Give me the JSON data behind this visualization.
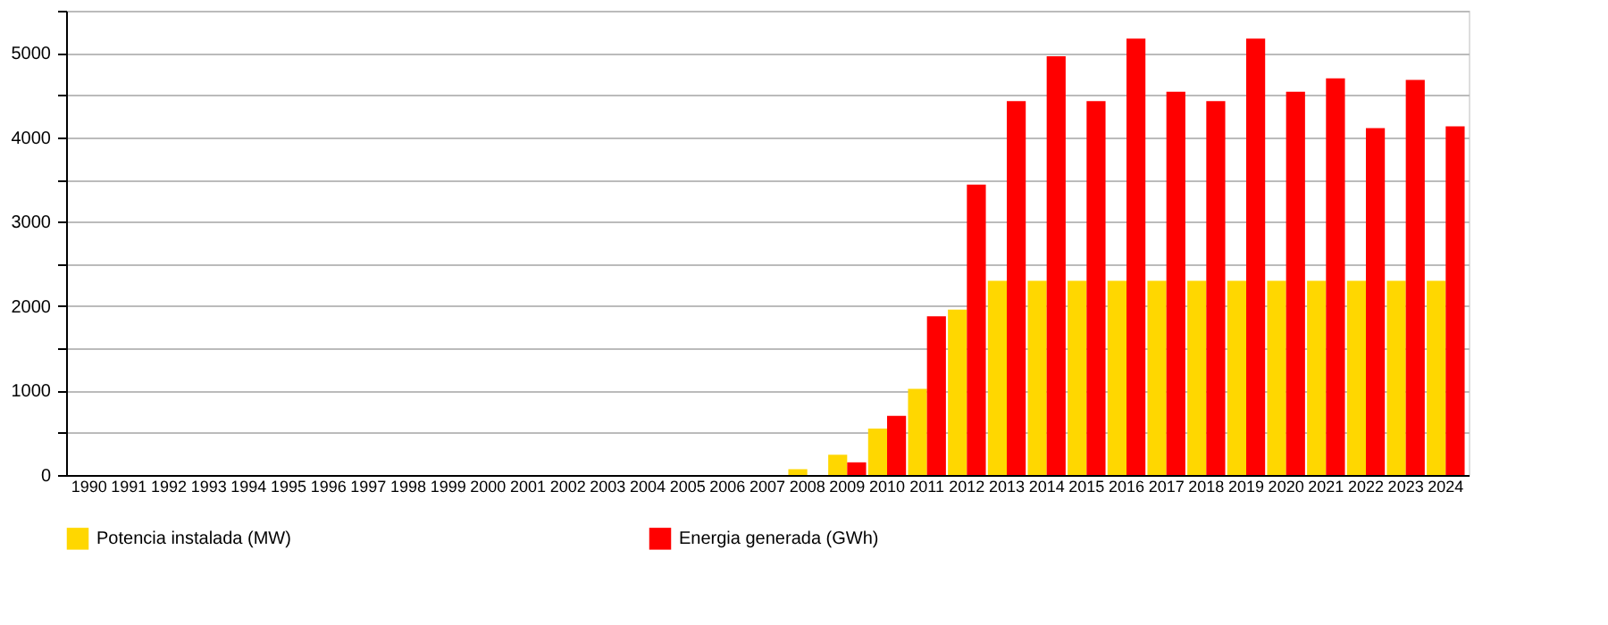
{
  "chart_data": {
    "type": "bar",
    "categories": [
      "1990",
      "1991",
      "1992",
      "1993",
      "1994",
      "1995",
      "1996",
      "1997",
      "1998",
      "1999",
      "2000",
      "2001",
      "2002",
      "2003",
      "2004",
      "2005",
      "2006",
      "2007",
      "2008",
      "2009",
      "2010",
      "2011",
      "2012",
      "2013",
      "2014",
      "2015",
      "2016",
      "2017",
      "2018",
      "2019",
      "2020",
      "2021",
      "2022",
      "2023",
      "2024"
    ],
    "series": [
      {
        "name": "Potencia instalada (MW)",
        "color": "#ffd700",
        "values": [
          0,
          0,
          0,
          0,
          0,
          0,
          0,
          0,
          0,
          0,
          0,
          0,
          0,
          0,
          0,
          0,
          0,
          0,
          70,
          240,
          550,
          1020,
          1960,
          2300,
          2300,
          2300,
          2300,
          2300,
          2300,
          2300,
          2300,
          2300,
          2300,
          2300,
          2300
        ]
      },
      {
        "name": "Energia generada (GWh)",
        "color": "#ff0000",
        "values": [
          0,
          0,
          0,
          0,
          0,
          0,
          0,
          0,
          0,
          0,
          0,
          0,
          0,
          0,
          0,
          0,
          0,
          0,
          0,
          150,
          700,
          1880,
          3440,
          4430,
          4960,
          4430,
          5170,
          4540,
          4430,
          5170,
          4540,
          4700,
          4110,
          4680,
          4130
        ]
      }
    ],
    "ylim": [
      0,
      5500
    ],
    "yticks": [
      0,
      {
        "value": 500,
        "label": null
      },
      1000,
      {
        "value": 1500,
        "label": null
      },
      2000,
      {
        "value": 2500,
        "label": null
      },
      3000,
      {
        "value": 3500,
        "label": null
      },
      4000,
      {
        "value": 4500,
        "label": null
      },
      5000,
      {
        "value": 5500,
        "label": null
      }
    ],
    "grid": "y",
    "legend": "bottom"
  }
}
